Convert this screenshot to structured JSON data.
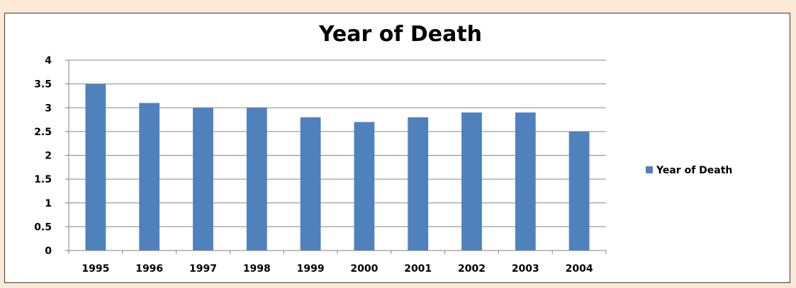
{
  "chart_data": {
    "type": "bar",
    "title": "Year of Death",
    "categories": [
      "1995",
      "1996",
      "1997",
      "1998",
      "1999",
      "2000",
      "2001",
      "2002",
      "2003",
      "2004"
    ],
    "series": [
      {
        "name": "Year of Death",
        "values": [
          3.5,
          3.1,
          3.0,
          3.0,
          2.8,
          2.7,
          2.8,
          2.9,
          2.9,
          2.5
        ]
      }
    ],
    "yticks": [
      "0",
      "0.5",
      "1",
      "1.5",
      "2",
      "2.5",
      "3",
      "3.5",
      "4"
    ],
    "ylim": [
      0,
      4
    ],
    "grid": true,
    "legend": "right",
    "colors": {
      "bar": "#4f81bd",
      "grid": "#888888",
      "axis": "#808080"
    }
  }
}
